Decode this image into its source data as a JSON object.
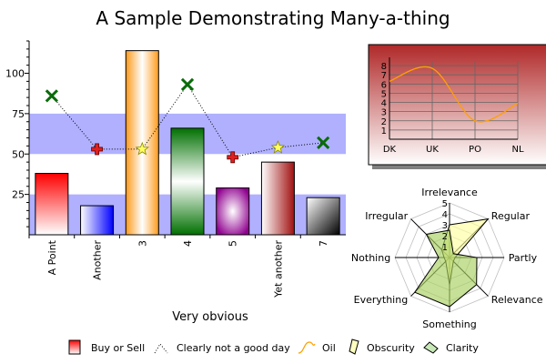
{
  "chart_data": [
    {
      "type": "bar",
      "title": "A Sample Demonstrating Many-a-thing",
      "xlabel": "Very obvious",
      "ylabel": "",
      "ylim": [
        0,
        120
      ],
      "yticks": [
        "25",
        "50",
        "75",
        "100"
      ],
      "categories": [
        "A Point",
        "Another",
        "3",
        "4",
        "5",
        "Yet another",
        "7"
      ],
      "bands": [
        [
          0,
          25
        ],
        [
          50,
          75
        ]
      ],
      "band_color": "#b0b0ff",
      "series": [
        {
          "name": "Buy or Sell",
          "type": "bar",
          "values": [
            38,
            18,
            114,
            66,
            29,
            45,
            23
          ],
          "colors": [
            "#ff0000",
            "#0000ff",
            "#ffb040",
            "#008000",
            "#a020a0",
            "#b02020",
            "#000000"
          ]
        },
        {
          "name": "Clearly not a good day",
          "type": "line",
          "values": [
            86,
            53,
            53,
            93,
            48,
            54,
            57
          ],
          "markers": [
            "x",
            "plus",
            "star",
            "x",
            "plus",
            "star",
            "x"
          ]
        }
      ]
    },
    {
      "type": "line",
      "categories": [
        "DK",
        "UK",
        "PO",
        "NL"
      ],
      "yticks": [
        "1",
        "2",
        "3",
        "4",
        "5",
        "6",
        "7",
        "8"
      ],
      "ylim": [
        0,
        8.5
      ],
      "series": [
        {
          "name": "Oil",
          "values": [
            6.3,
            7.7,
            2.0,
            3.9
          ]
        }
      ]
    },
    {
      "type": "radar",
      "axes": [
        "Irrelevance",
        "Regular",
        "Partly",
        "Relevance",
        "Something",
        "Everything",
        "Nothing",
        "Irregular"
      ],
      "rticks": [
        "1",
        "2",
        "3",
        "4",
        "5"
      ],
      "rmax": 5,
      "series": [
        {
          "name": "Obscurity",
          "values": [
            3,
            5,
            0.5,
            0.5,
            2.5,
            0.5,
            0.5,
            1
          ],
          "color": "#ffffa0"
        },
        {
          "name": "Clarity",
          "values": [
            2.5,
            0.5,
            2.5,
            3.5,
            4.5,
            4.5,
            1,
            3
          ],
          "color": "#a8d060"
        }
      ]
    }
  ],
  "legend": [
    {
      "label": "Buy or Sell",
      "icon": "red-bar-swatch"
    },
    {
      "label": "Clearly not a good day",
      "icon": "dotted-line-swatch"
    },
    {
      "label": "Oil",
      "icon": "orange-curve-swatch"
    },
    {
      "label": "Obscurity",
      "icon": "yellow-polygon-swatch"
    },
    {
      "label": "Clarity",
      "icon": "green-polygon-swatch"
    }
  ]
}
